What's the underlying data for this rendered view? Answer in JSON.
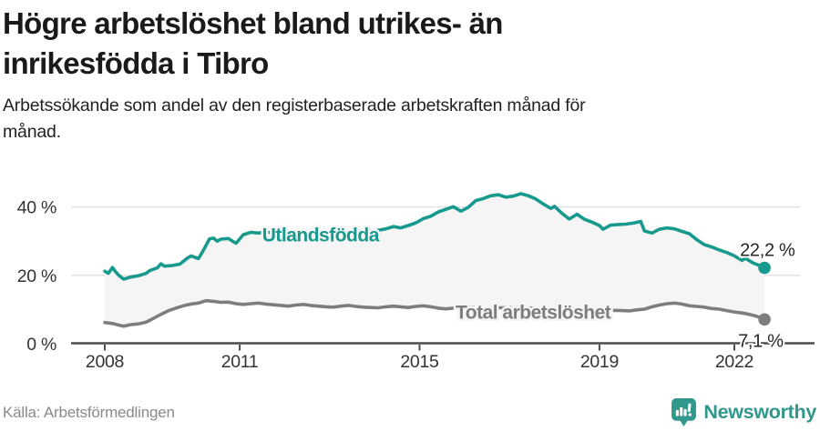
{
  "header": {
    "title_lines": [
      "Högre arbetslöshet bland utrikes- än",
      "inrikesfödda i Tibro"
    ],
    "subtitle_lines": [
      "Arbetssökande som andel av den registerbaserade arbetskraften månad för",
      "månad."
    ]
  },
  "footer": {
    "source": "Källa: Arbetsförmedlingen",
    "brand": "Newsworthy",
    "brand_icon": "newsworthy-chart-bubble-icon",
    "brand_color": "#2f978c"
  },
  "chart_data": {
    "type": "line",
    "title": "Arbetssökande som andel av den registerbaserade arbetskraften månad för månad",
    "xlabel": "",
    "ylabel": "",
    "x_range": [
      2008.0,
      2022.67
    ],
    "ylim": [
      0,
      46
    ],
    "grid": "horizontal-y",
    "legend_position": "inline-labels-on-lines",
    "fill_between_series": true,
    "x_axis": {
      "ticks": [
        {
          "year": 2008,
          "label": "2008"
        },
        {
          "year": 2011,
          "label": "2011"
        },
        {
          "year": 2015,
          "label": "2015"
        },
        {
          "year": 2019,
          "label": "2019"
        },
        {
          "year": 2022,
          "label": "2022"
        }
      ]
    },
    "y_axis": {
      "ticks": [
        {
          "value": 0,
          "label": "0 %"
        },
        {
          "value": 20,
          "label": "20 %"
        },
        {
          "value": 40,
          "label": "40 %"
        }
      ]
    },
    "colors": {
      "grid": "#dcdcdc",
      "axis": "#4b4b4b",
      "fill_between": "#f5f5f5",
      "tick_text": "#333333",
      "end_label_text": "#262626"
    },
    "series": [
      {
        "name": "Utlandsfödda",
        "color": "#17998d",
        "end_value": 22.2,
        "end_label": "22,2 %",
        "label_pos": {
          "year": 2011.5,
          "value": 30.0
        },
        "points": [
          [
            2008.0,
            21.2
          ],
          [
            2008.08,
            20.6
          ],
          [
            2008.17,
            22.3
          ],
          [
            2008.25,
            20.9
          ],
          [
            2008.33,
            19.8
          ],
          [
            2008.42,
            18.9
          ],
          [
            2008.58,
            19.5
          ],
          [
            2008.75,
            19.9
          ],
          [
            2008.92,
            20.6
          ],
          [
            2009.0,
            21.4
          ],
          [
            2009.17,
            22.2
          ],
          [
            2009.25,
            23.4
          ],
          [
            2009.33,
            22.7
          ],
          [
            2009.5,
            22.9
          ],
          [
            2009.67,
            23.3
          ],
          [
            2009.83,
            25.0
          ],
          [
            2009.92,
            25.7
          ],
          [
            2010.08,
            24.9
          ],
          [
            2010.17,
            26.8
          ],
          [
            2010.33,
            30.7
          ],
          [
            2010.42,
            30.9
          ],
          [
            2010.5,
            30.0
          ],
          [
            2010.58,
            30.6
          ],
          [
            2010.75,
            30.8
          ],
          [
            2010.83,
            30.1
          ],
          [
            2010.92,
            29.4
          ],
          [
            2011.08,
            31.9
          ],
          [
            2011.25,
            32.6
          ],
          [
            2011.42,
            32.4
          ],
          [
            2011.58,
            32.8
          ],
          [
            2011.75,
            32.3
          ],
          [
            2012.0,
            32.6
          ],
          [
            2012.25,
            32.0
          ],
          [
            2012.5,
            31.6
          ],
          [
            2012.75,
            31.9
          ],
          [
            2013.0,
            31.8
          ],
          [
            2013.25,
            32.4
          ],
          [
            2013.5,
            32.9
          ],
          [
            2013.75,
            33.2
          ],
          [
            2014.0,
            33.0
          ],
          [
            2014.25,
            33.6
          ],
          [
            2014.42,
            34.3
          ],
          [
            2014.58,
            33.9
          ],
          [
            2014.75,
            34.6
          ],
          [
            2014.92,
            35.4
          ],
          [
            2015.08,
            36.6
          ],
          [
            2015.25,
            37.3
          ],
          [
            2015.42,
            38.6
          ],
          [
            2015.58,
            39.3
          ],
          [
            2015.75,
            40.1
          ],
          [
            2015.92,
            38.8
          ],
          [
            2016.08,
            39.9
          ],
          [
            2016.25,
            41.9
          ],
          [
            2016.42,
            42.5
          ],
          [
            2016.58,
            43.3
          ],
          [
            2016.75,
            43.6
          ],
          [
            2016.92,
            42.9
          ],
          [
            2017.08,
            43.2
          ],
          [
            2017.25,
            43.9
          ],
          [
            2017.42,
            43.3
          ],
          [
            2017.58,
            42.4
          ],
          [
            2017.75,
            40.9
          ],
          [
            2017.92,
            39.6
          ],
          [
            2018.0,
            40.2
          ],
          [
            2018.17,
            38.1
          ],
          [
            2018.33,
            36.5
          ],
          [
            2018.5,
            37.9
          ],
          [
            2018.67,
            36.4
          ],
          [
            2018.83,
            35.6
          ],
          [
            2019.0,
            34.6
          ],
          [
            2019.08,
            33.5
          ],
          [
            2019.25,
            34.7
          ],
          [
            2019.42,
            34.9
          ],
          [
            2019.58,
            35.0
          ],
          [
            2019.75,
            35.3
          ],
          [
            2019.92,
            35.8
          ],
          [
            2020.0,
            33.0
          ],
          [
            2020.17,
            32.4
          ],
          [
            2020.33,
            33.5
          ],
          [
            2020.5,
            33.9
          ],
          [
            2020.67,
            33.6
          ],
          [
            2020.83,
            32.9
          ],
          [
            2021.0,
            32.2
          ],
          [
            2021.17,
            30.4
          ],
          [
            2021.33,
            29.0
          ],
          [
            2021.5,
            28.3
          ],
          [
            2021.67,
            27.4
          ],
          [
            2021.83,
            26.7
          ],
          [
            2022.0,
            25.7
          ],
          [
            2022.17,
            24.4
          ],
          [
            2022.25,
            25.0
          ],
          [
            2022.42,
            23.6
          ],
          [
            2022.58,
            22.8
          ],
          [
            2022.67,
            22.2
          ]
        ]
      },
      {
        "name": "Total arbetslöshet",
        "color": "#7d7d7d",
        "end_value": 7.1,
        "end_label": "7,1 %",
        "label_pos": {
          "year": 2015.8,
          "value": 7.3
        },
        "points": [
          [
            2008.0,
            6.2
          ],
          [
            2008.17,
            5.9
          ],
          [
            2008.33,
            5.4
          ],
          [
            2008.42,
            5.1
          ],
          [
            2008.58,
            5.6
          ],
          [
            2008.75,
            5.8
          ],
          [
            2008.92,
            6.3
          ],
          [
            2009.08,
            7.4
          ],
          [
            2009.25,
            8.6
          ],
          [
            2009.42,
            9.7
          ],
          [
            2009.58,
            10.4
          ],
          [
            2009.75,
            11.1
          ],
          [
            2009.92,
            11.6
          ],
          [
            2010.08,
            11.9
          ],
          [
            2010.25,
            12.6
          ],
          [
            2010.42,
            12.4
          ],
          [
            2010.58,
            12.1
          ],
          [
            2010.75,
            12.2
          ],
          [
            2010.92,
            11.7
          ],
          [
            2011.08,
            11.5
          ],
          [
            2011.25,
            11.7
          ],
          [
            2011.42,
            11.9
          ],
          [
            2011.58,
            11.6
          ],
          [
            2011.75,
            11.4
          ],
          [
            2011.92,
            11.2
          ],
          [
            2012.08,
            11.0
          ],
          [
            2012.25,
            11.3
          ],
          [
            2012.42,
            11.5
          ],
          [
            2012.58,
            11.2
          ],
          [
            2012.75,
            11.0
          ],
          [
            2012.92,
            10.8
          ],
          [
            2013.08,
            10.7
          ],
          [
            2013.25,
            11.0
          ],
          [
            2013.42,
            11.2
          ],
          [
            2013.58,
            10.9
          ],
          [
            2013.75,
            10.7
          ],
          [
            2013.92,
            10.6
          ],
          [
            2014.08,
            10.5
          ],
          [
            2014.25,
            10.8
          ],
          [
            2014.42,
            11.0
          ],
          [
            2014.58,
            10.8
          ],
          [
            2014.75,
            10.6
          ],
          [
            2014.92,
            10.9
          ],
          [
            2015.08,
            11.1
          ],
          [
            2015.25,
            10.8
          ],
          [
            2015.42,
            10.4
          ],
          [
            2015.58,
            10.2
          ],
          [
            2015.75,
            10.4
          ],
          [
            2015.92,
            10.5
          ],
          [
            2016.17,
            10.6
          ],
          [
            2016.5,
            10.4
          ],
          [
            2016.83,
            10.5
          ],
          [
            2017.17,
            10.6
          ],
          [
            2017.5,
            10.4
          ],
          [
            2017.83,
            10.2
          ],
          [
            2018.17,
            10.0
          ],
          [
            2018.5,
            10.1
          ],
          [
            2018.83,
            9.9
          ],
          [
            2019.17,
            9.8
          ],
          [
            2019.5,
            9.7
          ],
          [
            2019.67,
            9.6
          ],
          [
            2019.83,
            9.9
          ],
          [
            2020.0,
            10.1
          ],
          [
            2020.17,
            10.8
          ],
          [
            2020.33,
            11.3
          ],
          [
            2020.5,
            11.7
          ],
          [
            2020.67,
            11.9
          ],
          [
            2020.83,
            11.6
          ],
          [
            2021.0,
            11.1
          ],
          [
            2021.17,
            10.9
          ],
          [
            2021.33,
            10.7
          ],
          [
            2021.5,
            10.3
          ],
          [
            2021.67,
            10.1
          ],
          [
            2021.83,
            9.7
          ],
          [
            2022.0,
            9.3
          ],
          [
            2022.17,
            9.0
          ],
          [
            2022.33,
            8.6
          ],
          [
            2022.5,
            8.0
          ],
          [
            2022.58,
            7.6
          ],
          [
            2022.67,
            7.1
          ]
        ]
      }
    ]
  }
}
